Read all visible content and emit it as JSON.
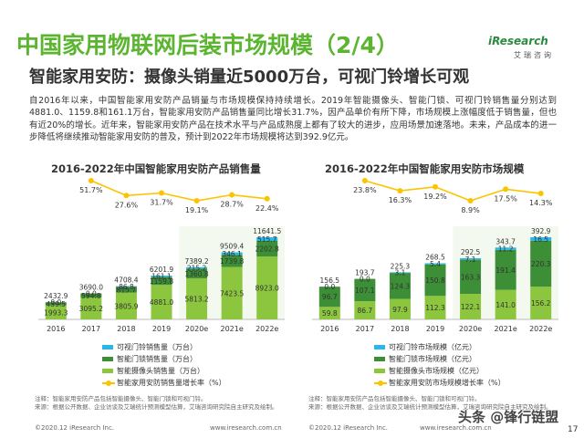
{
  "header": {
    "title": "中国家用物联网后装市场规模（2/4）",
    "logo_text": "iResearch",
    "logo_sub": "艾瑞咨询",
    "subtitle": "智能家用安防：摄像头销量近5000万台，可视门铃增长可观"
  },
  "paragraph": "自2016年以来，中国智能家用安防产品销量与市场规模保持持续增长。2019年智能摄像头、智能门锁、可视门铃销售量分别达到4881.0、1159.8和161.1万台，智能家用安防产品销售量同比增长31.7%，因产品单价有所下降，市场规模上涨幅度低于销售量，但也有近20%的增长。近年来，智能家用安防产品在技术水平与产品成熟度上都有了较大的进步，应用场景加速落地。未来，产品成本的进一步降低将继续推动智能家用安防的普及，预计到2022年市场规模将达到392.9亿元。",
  "colors": {
    "title_green": "#5cb531",
    "doorbell": "#29b6e8",
    "lock": "#3c8f36",
    "camera": "#8cc63e",
    "growth_line": "#fbc400"
  },
  "chart_data": [
    {
      "type": "bar",
      "title": "2016-2022年中国智能家用安防产品销售量",
      "categories": [
        "2016",
        "2017",
        "2018",
        "2019",
        "2020e",
        "2021e",
        "2022e"
      ],
      "series": [
        {
          "name": "智能摄像头销售量（万台）",
          "values": [
            1993.3,
            3095.2,
            3805.9,
            4881.0,
            5813.2,
            7423.5,
            8923.0
          ]
        },
        {
          "name": "智能门锁销售量（万台）",
          "values": [
            439.5,
            594.8,
            815.7,
            1159.8,
            1360.8,
            1739.8,
            2202.8
          ]
        },
        {
          "name": "可视门铃销售量（万台）",
          "values": [
            0.0,
            0.0,
            86.8,
            161.1,
            215.2,
            346.1,
            515.7
          ]
        }
      ],
      "totals": [
        2432.9,
        3690.0,
        4708.4,
        6201.9,
        7389.2,
        9509.4,
        11641.5
      ],
      "line": {
        "name": "智能家用安防销售量增长率（%）",
        "values": [
          null,
          51.7,
          27.6,
          31.7,
          19.1,
          28.7,
          22.4
        ]
      },
      "line_labels": [
        "51.7%",
        "27.6%",
        "31.7%",
        "19.1%",
        "28.7%",
        "22.4%"
      ],
      "ylim": [
        0,
        11641.5
      ]
    },
    {
      "type": "bar",
      "title": "2016-2022年中国智能家用安防市场规模",
      "categories": [
        "2016",
        "2017",
        "2018",
        "2019",
        "2020e",
        "2021e",
        "2022e"
      ],
      "series": [
        {
          "name": "智能摄像头市场规模（亿元）",
          "values": [
            59.8,
            86.7,
            97.9,
            112.3,
            122.1,
            141.0,
            156.2
          ]
        },
        {
          "name": "智能门锁市场规模（亿元）",
          "values": [
            96.7,
            107.1,
            124.3,
            150.8,
            163.3,
            191.4,
            220.3
          ]
        },
        {
          "name": "可视门铃市场规模（亿元）",
          "values": [
            0.0,
            0.0,
            3.1,
            5.4,
            7.1,
            11.2,
            16.5
          ]
        }
      ],
      "totals": [
        156.5,
        193.7,
        225.3,
        268.5,
        292.5,
        343.7,
        392.9
      ],
      "line": {
        "name": "智能家用安防市场规模增长率（%）",
        "values": [
          null,
          23.8,
          16.3,
          19.2,
          8.9,
          17.5,
          14.3
        ]
      },
      "line_labels": [
        "23.8%",
        "16.3%",
        "19.2%",
        "8.9%",
        "17.5%",
        "14.3%"
      ],
      "ylim": [
        0,
        392.9
      ]
    }
  ],
  "footnotes": {
    "left": "注释：智能家用安防产品包括智能摄像头、智能门锁和可视门铃。\n来源：根据公开数据、企业访谈及艾瑞统计预测模型估算，艾瑞咨询研究院自主研究及绘制。",
    "right": "注释：智能家用安防产品包括智能摄像头、智能门锁和可视门铃。\n来源：根据公开数据、企业访谈及艾瑞统计预测模型估算，艾瑞咨询研究院自主研究及绘制。"
  },
  "copyright": {
    "left": "©2020.12 iResearch Inc.",
    "left_url": "www.iresearch.com.cn",
    "right": "©2020.12 iResearch Inc.",
    "right_url": "www.iresearch.com.cn"
  },
  "watermark": "头条 @锋行链盟",
  "page_number": "17"
}
